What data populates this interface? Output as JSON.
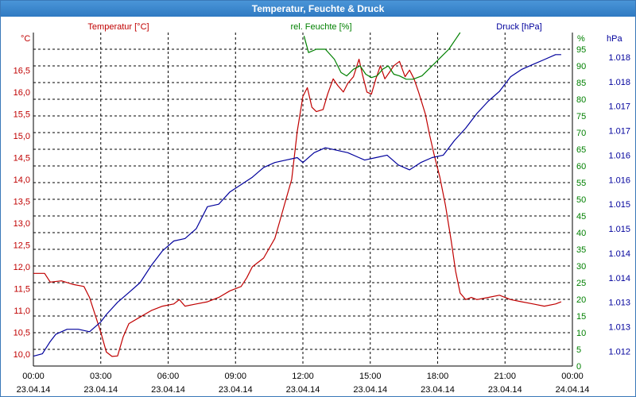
{
  "window": {
    "title": "Temperatur, Feuchte & Druck"
  },
  "colors": {
    "temperature": "#c00000",
    "humidity": "#008000",
    "pressure": "#00009c",
    "grid": "#000000"
  },
  "chart_data": {
    "type": "line",
    "title": "Temperatur, Feuchte & Druck",
    "grid": true,
    "x": {
      "range": [
        0,
        24
      ],
      "ticks": [
        {
          "v": 0,
          "time": "00:00",
          "date": "23.04.14"
        },
        {
          "v": 3,
          "time": "03:00",
          "date": "23.04.14"
        },
        {
          "v": 6,
          "time": "06:00",
          "date": "23.04.14"
        },
        {
          "v": 9,
          "time": "09:00",
          "date": "23.04.14"
        },
        {
          "v": 12,
          "time": "12:00",
          "date": "23.04.14"
        },
        {
          "v": 15,
          "time": "15:00",
          "date": "23.04.14"
        },
        {
          "v": 18,
          "time": "18:00",
          "date": "23.04.14"
        },
        {
          "v": 21,
          "time": "21:00",
          "date": "23.04.14"
        },
        {
          "v": 24,
          "time": "00:00",
          "date": "24.04.14"
        }
      ]
    },
    "axes": {
      "temperature": {
        "unit": "°C",
        "label": "Temperatur [°C]",
        "range": [
          9.73,
          17.36
        ],
        "ticks": [
          {
            "v": 10.0,
            "label": "10,0"
          },
          {
            "v": 10.5,
            "label": "10,5"
          },
          {
            "v": 11.0,
            "label": "11,0"
          },
          {
            "v": 11.5,
            "label": "11,5"
          },
          {
            "v": 12.0,
            "label": "12,0"
          },
          {
            "v": 12.5,
            "label": "12,5"
          },
          {
            "v": 13.0,
            "label": "13,0"
          },
          {
            "v": 13.5,
            "label": "13,5"
          },
          {
            "v": 14.0,
            "label": "14,0"
          },
          {
            "v": 14.5,
            "label": "14,5"
          },
          {
            "v": 15.0,
            "label": "15,0"
          },
          {
            "v": 15.5,
            "label": "15,5"
          },
          {
            "v": 16.0,
            "label": "16,0"
          },
          {
            "v": 16.5,
            "label": "16,5"
          }
        ]
      },
      "humidity": {
        "unit": "%",
        "label": "rel. Feuchte [%]",
        "range": [
          0,
          100
        ],
        "ticks": [
          {
            "v": 0,
            "label": "0"
          },
          {
            "v": 5,
            "label": "5"
          },
          {
            "v": 10,
            "label": "10"
          },
          {
            "v": 15,
            "label": "15"
          },
          {
            "v": 20,
            "label": "20"
          },
          {
            "v": 25,
            "label": "25"
          },
          {
            "v": 30,
            "label": "30"
          },
          {
            "v": 35,
            "label": "35"
          },
          {
            "v": 40,
            "label": "40"
          },
          {
            "v": 45,
            "label": "45"
          },
          {
            "v": 50,
            "label": "50"
          },
          {
            "v": 55,
            "label": "55"
          },
          {
            "v": 60,
            "label": "60"
          },
          {
            "v": 65,
            "label": "65"
          },
          {
            "v": 70,
            "label": "70"
          },
          {
            "v": 75,
            "label": "75"
          },
          {
            "v": 80,
            "label": "80"
          },
          {
            "v": 85,
            "label": "85"
          },
          {
            "v": 90,
            "label": "90"
          },
          {
            "v": 95,
            "label": "95"
          }
        ]
      },
      "pressure": {
        "unit": "hPa",
        "label": "Druck [hPa]",
        "range": [
          1011.7,
          1018.5
        ],
        "ticks": [
          {
            "v": 1012.0,
            "label": "1.012"
          },
          {
            "v": 1012.5,
            "label": "1.013"
          },
          {
            "v": 1013.0,
            "label": "1.013"
          },
          {
            "v": 1013.5,
            "label": "1.014"
          },
          {
            "v": 1014.0,
            "label": "1.014"
          },
          {
            "v": 1014.5,
            "label": "1.015"
          },
          {
            "v": 1015.0,
            "label": "1.015"
          },
          {
            "v": 1015.5,
            "label": "1.016"
          },
          {
            "v": 1016.0,
            "label": "1.016"
          },
          {
            "v": 1016.5,
            "label": "1.017"
          },
          {
            "v": 1017.0,
            "label": "1.017"
          },
          {
            "v": 1017.5,
            "label": "1.018"
          },
          {
            "v": 1018.0,
            "label": "1.018"
          }
        ]
      }
    },
    "series": [
      {
        "name": "Temperatur [°C]",
        "axis": "temperature",
        "points": [
          [
            0,
            11.85
          ],
          [
            0.5,
            11.85
          ],
          [
            0.75,
            11.65
          ],
          [
            1.25,
            11.68
          ],
          [
            1.75,
            11.6
          ],
          [
            2.25,
            11.55
          ],
          [
            2.5,
            11.3
          ],
          [
            2.75,
            10.9
          ],
          [
            3.0,
            10.5
          ],
          [
            3.25,
            10.05
          ],
          [
            3.5,
            9.95
          ],
          [
            3.75,
            9.96
          ],
          [
            4.0,
            10.4
          ],
          [
            4.25,
            10.7
          ],
          [
            4.75,
            10.85
          ],
          [
            5.25,
            11.0
          ],
          [
            5.75,
            11.1
          ],
          [
            6.25,
            11.15
          ],
          [
            6.5,
            11.25
          ],
          [
            6.75,
            11.1
          ],
          [
            7.25,
            11.15
          ],
          [
            7.75,
            11.2
          ],
          [
            8.25,
            11.3
          ],
          [
            8.75,
            11.45
          ],
          [
            9.25,
            11.55
          ],
          [
            9.5,
            11.75
          ],
          [
            9.75,
            12.0
          ],
          [
            10.25,
            12.2
          ],
          [
            10.75,
            12.65
          ],
          [
            11.0,
            13.1
          ],
          [
            11.25,
            13.55
          ],
          [
            11.5,
            14.0
          ],
          [
            11.75,
            15.1
          ],
          [
            12.0,
            15.9
          ],
          [
            12.2,
            16.1
          ],
          [
            12.4,
            15.65
          ],
          [
            12.6,
            15.55
          ],
          [
            12.9,
            15.6
          ],
          [
            13.1,
            15.95
          ],
          [
            13.35,
            16.3
          ],
          [
            13.55,
            16.15
          ],
          [
            13.8,
            16.0
          ],
          [
            14.0,
            16.2
          ],
          [
            14.25,
            16.35
          ],
          [
            14.5,
            16.75
          ],
          [
            14.65,
            16.4
          ],
          [
            14.85,
            16.0
          ],
          [
            15.05,
            15.95
          ],
          [
            15.25,
            16.3
          ],
          [
            15.45,
            16.6
          ],
          [
            15.65,
            16.3
          ],
          [
            15.85,
            16.45
          ],
          [
            16.05,
            16.6
          ],
          [
            16.3,
            16.7
          ],
          [
            16.55,
            16.35
          ],
          [
            16.75,
            16.5
          ],
          [
            16.95,
            16.3
          ],
          [
            17.15,
            16.0
          ],
          [
            17.45,
            15.5
          ],
          [
            17.65,
            15.0
          ],
          [
            17.85,
            14.55
          ],
          [
            18.1,
            14.05
          ],
          [
            18.35,
            13.4
          ],
          [
            18.6,
            12.6
          ],
          [
            18.8,
            11.9
          ],
          [
            19.0,
            11.4
          ],
          [
            19.25,
            11.25
          ],
          [
            19.5,
            11.3
          ],
          [
            19.75,
            11.25
          ],
          [
            20.25,
            11.3
          ],
          [
            20.75,
            11.35
          ],
          [
            21.25,
            11.25
          ],
          [
            21.75,
            11.2
          ],
          [
            22.25,
            11.15
          ],
          [
            22.75,
            11.1
          ],
          [
            23.25,
            11.15
          ],
          [
            23.5,
            11.2
          ]
        ]
      },
      {
        "name": "rel. Feuchte [%]",
        "axis": "humidity",
        "points": [
          [
            12.05,
            99
          ],
          [
            12.25,
            94
          ],
          [
            12.6,
            95
          ],
          [
            13.0,
            95
          ],
          [
            13.4,
            92
          ],
          [
            13.7,
            88
          ],
          [
            13.95,
            87
          ],
          [
            14.25,
            89
          ],
          [
            14.55,
            90
          ],
          [
            14.8,
            87.5
          ],
          [
            15.05,
            86.5
          ],
          [
            15.3,
            87
          ],
          [
            15.55,
            89
          ],
          [
            15.8,
            90
          ],
          [
            16.05,
            87.5
          ],
          [
            16.3,
            87
          ],
          [
            16.6,
            86
          ],
          [
            16.9,
            86
          ],
          [
            17.3,
            87
          ],
          [
            17.6,
            89
          ],
          [
            17.9,
            91
          ],
          [
            18.2,
            93
          ],
          [
            18.5,
            95
          ],
          [
            18.8,
            98
          ],
          [
            19.0,
            100
          ]
        ]
      },
      {
        "name": "Druck [hPa]",
        "axis": "pressure",
        "points": [
          [
            0,
            1011.9
          ],
          [
            0.4,
            1011.95
          ],
          [
            0.75,
            1012.2
          ],
          [
            1.0,
            1012.35
          ],
          [
            1.5,
            1012.45
          ],
          [
            2.0,
            1012.45
          ],
          [
            2.5,
            1012.4
          ],
          [
            3.0,
            1012.6
          ],
          [
            3.25,
            1012.75
          ],
          [
            3.75,
            1013.0
          ],
          [
            4.25,
            1013.2
          ],
          [
            4.75,
            1013.4
          ],
          [
            5.25,
            1013.75
          ],
          [
            5.75,
            1014.05
          ],
          [
            6.25,
            1014.25
          ],
          [
            6.75,
            1014.3
          ],
          [
            7.25,
            1014.5
          ],
          [
            7.75,
            1014.95
          ],
          [
            8.25,
            1015.0
          ],
          [
            8.75,
            1015.25
          ],
          [
            9.25,
            1015.4
          ],
          [
            9.75,
            1015.55
          ],
          [
            10.25,
            1015.75
          ],
          [
            10.75,
            1015.85
          ],
          [
            11.25,
            1015.9
          ],
          [
            11.75,
            1015.95
          ],
          [
            12.0,
            1015.85
          ],
          [
            12.5,
            1016.05
          ],
          [
            13.0,
            1016.15
          ],
          [
            13.5,
            1016.1
          ],
          [
            14.0,
            1016.05
          ],
          [
            14.5,
            1015.95
          ],
          [
            14.75,
            1015.9
          ],
          [
            15.25,
            1015.95
          ],
          [
            15.75,
            1016.0
          ],
          [
            16.25,
            1015.8
          ],
          [
            16.75,
            1015.7
          ],
          [
            17.25,
            1015.85
          ],
          [
            17.75,
            1015.95
          ],
          [
            18.25,
            1016.0
          ],
          [
            18.75,
            1016.3
          ],
          [
            19.25,
            1016.55
          ],
          [
            19.75,
            1016.85
          ],
          [
            20.25,
            1017.1
          ],
          [
            20.75,
            1017.3
          ],
          [
            21.25,
            1017.6
          ],
          [
            21.75,
            1017.75
          ],
          [
            22.25,
            1017.85
          ],
          [
            22.75,
            1017.95
          ],
          [
            23.25,
            1018.05
          ],
          [
            23.5,
            1018.05
          ]
        ]
      }
    ]
  }
}
